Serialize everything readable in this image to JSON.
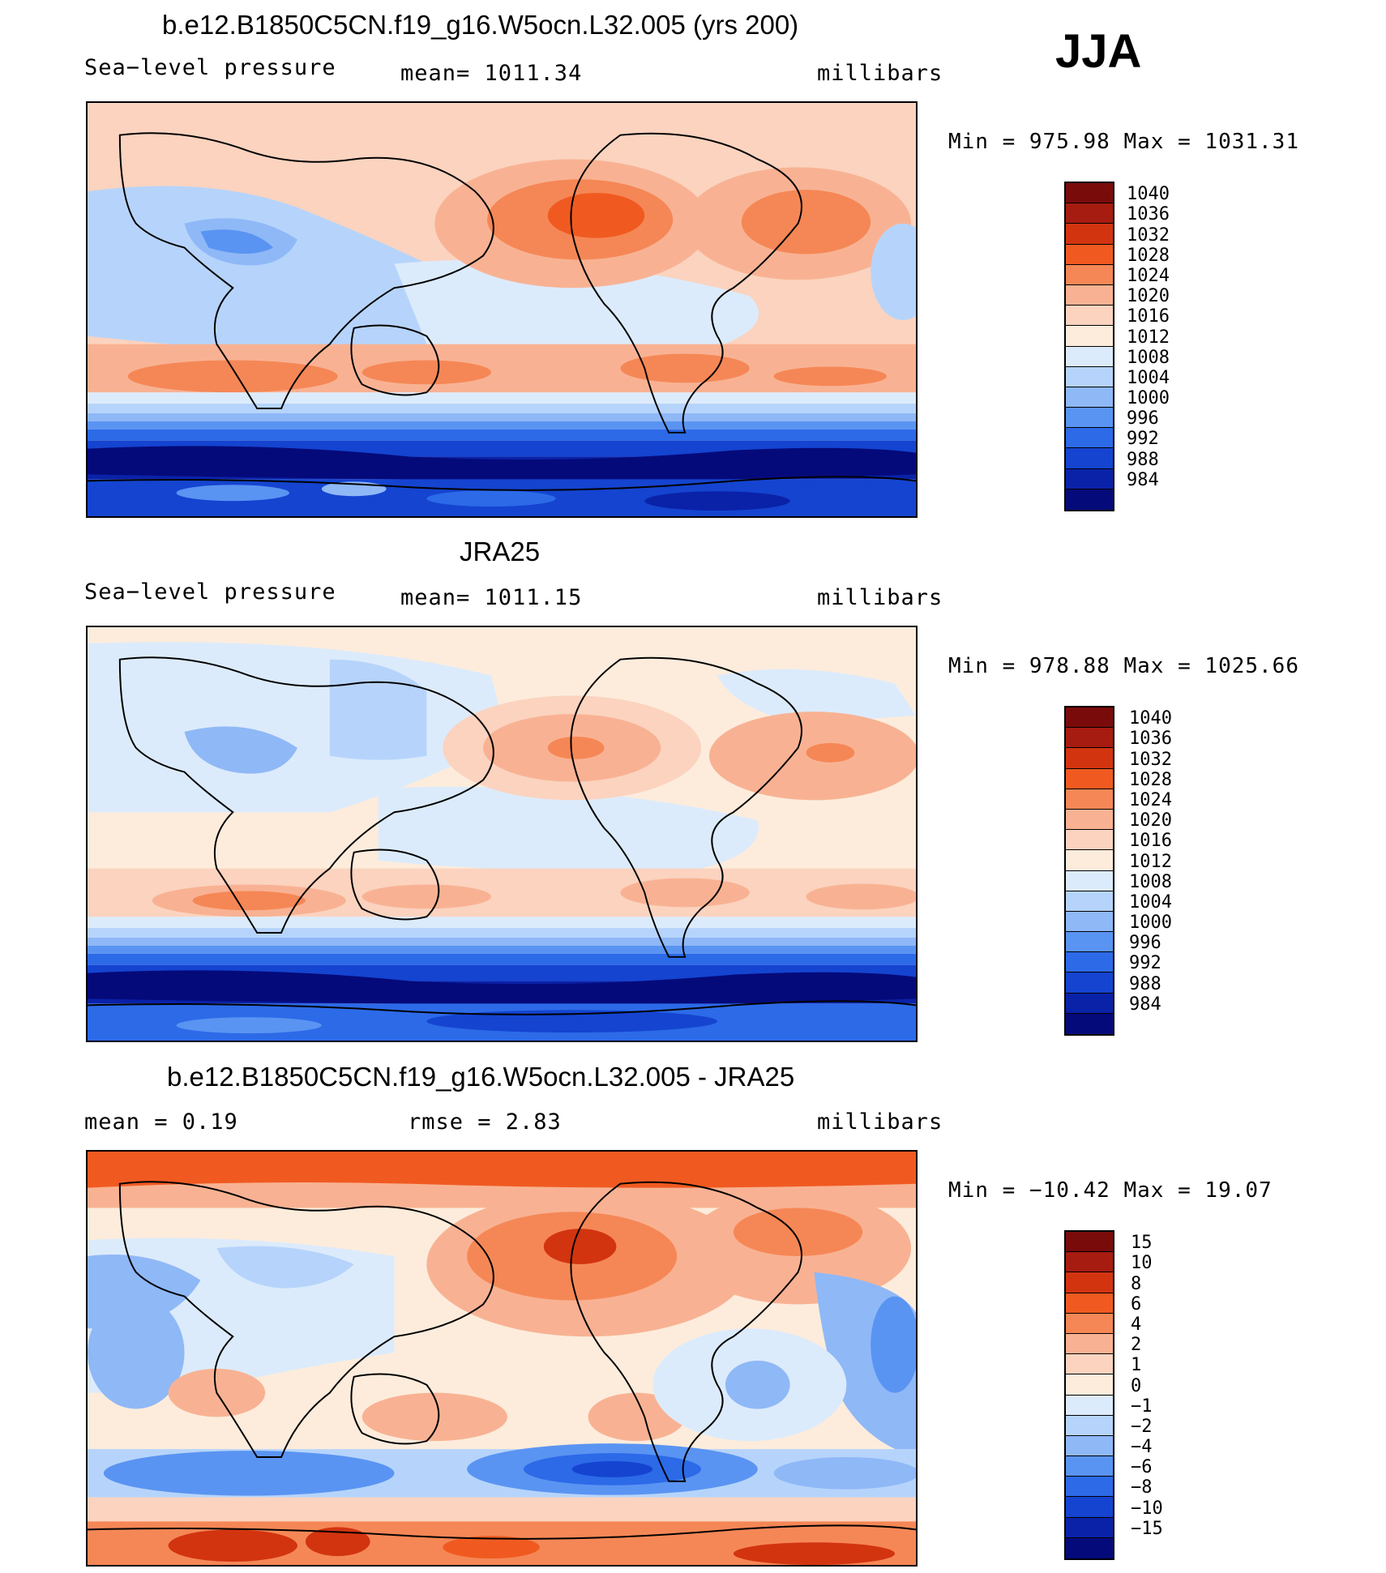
{
  "season": "JJA",
  "panels": [
    {
      "id": "model",
      "title": "b.e12.B1850C5CN.f19_g16.W5ocn.L32.005 (yrs 200)",
      "left_label": "Sea−level pressure",
      "center_label": "mean=  1011.34",
      "units": "millibars",
      "minmax": "Min  =  975.98  Max  =  1031.31",
      "colorbar_labels": [
        "1040",
        "1036",
        "1032",
        "1028",
        "1024",
        "1020",
        "1016",
        "1012",
        "1008",
        "1004",
        "1000",
        "996",
        "992",
        "988",
        "984"
      ]
    },
    {
      "id": "obs",
      "title": "JRA25",
      "left_label": "Sea−level pressure",
      "center_label": "mean=  1011.15",
      "units": "millibars",
      "minmax": "Min  =  978.88  Max  =  1025.66",
      "colorbar_labels": [
        "1040",
        "1036",
        "1032",
        "1028",
        "1024",
        "1020",
        "1016",
        "1012",
        "1008",
        "1004",
        "1000",
        "996",
        "992",
        "988",
        "984"
      ]
    },
    {
      "id": "diff",
      "title": "b.e12.B1850C5CN.f19_g16.W5ocn.L32.005 - JRA25",
      "left_label": "mean  =    0.19",
      "center_label": "rmse  =    2.83",
      "units": "millibars",
      "minmax": "Min  =  −10.42  Max  =    19.07",
      "colorbar_labels": [
        "15",
        "10",
        "8",
        "6",
        "4",
        "2",
        "1",
        "0",
        "−1",
        "−2",
        "−4",
        "−6",
        "−8",
        "−10",
        "−15"
      ]
    }
  ],
  "colors": {
    "palette": [
      "#7a0b0b",
      "#a61c10",
      "#d23410",
      "#f05a20",
      "#f58756",
      "#f8b293",
      "#fbd3bf",
      "#fdecdc",
      "#dcebfb",
      "#b6d4fb",
      "#8fb8f7",
      "#5a94f2",
      "#2c6ae8",
      "#1444d0",
      "#0a22a8",
      "#050a7a"
    ]
  }
}
